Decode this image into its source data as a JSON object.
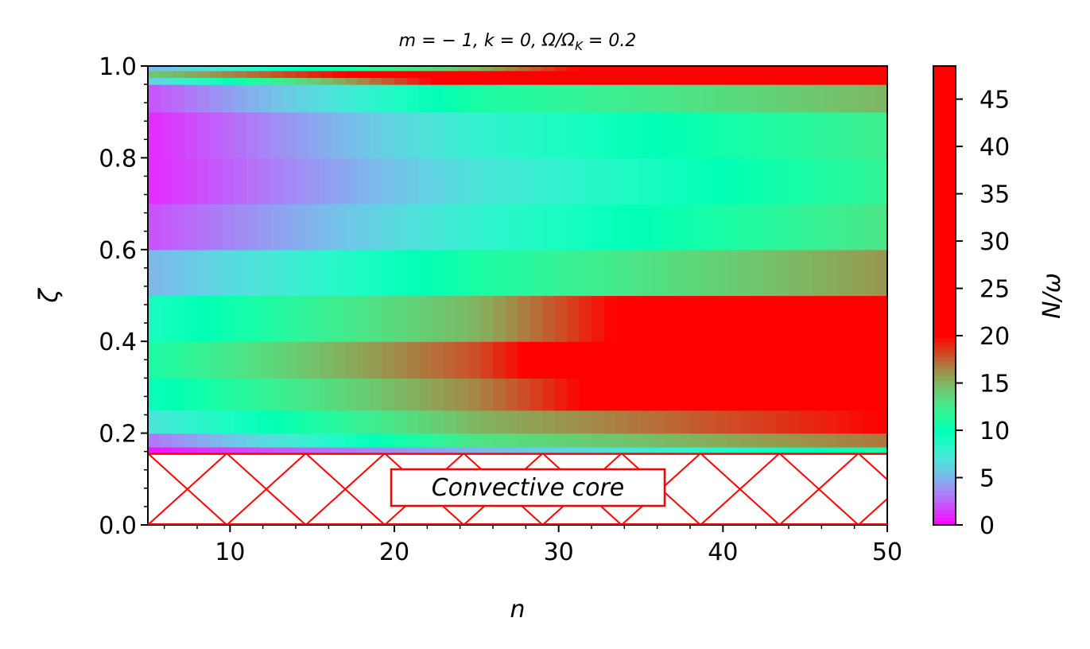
{
  "chart_data": {
    "type": "heatmap",
    "title_parts": [
      "m = − 1, k = 0, Ω/Ω",
      "K",
      " = 0.2"
    ],
    "xlabel": "n",
    "ylabel": "ζ",
    "xlim": [
      5,
      50
    ],
    "ylim": [
      0.0,
      1.0
    ],
    "x_ticks": [
      10,
      20,
      30,
      40,
      50
    ],
    "x_tick_labels": [
      "10",
      "20",
      "30",
      "40",
      "50"
    ],
    "y_ticks": [
      0.0,
      0.2,
      0.4,
      0.6,
      0.8,
      1.0
    ],
    "y_tick_labels": [
      "0.0",
      "0.2",
      "0.4",
      "0.6",
      "0.8",
      "1.0"
    ],
    "colorbar": {
      "label": "N/ω",
      "range": [
        0,
        48.5
      ],
      "ticks": [
        0,
        5,
        10,
        15,
        20,
        25,
        30,
        35,
        40,
        45
      ],
      "tick_labels": [
        "0",
        "5",
        "10",
        "15",
        "20",
        "25",
        "30",
        "35",
        "40",
        "45"
      ],
      "colormap": "rainbow",
      "saturation_value": 20
    },
    "convective_core": {
      "zeta_boundary": 0.155,
      "label": "Convective core",
      "color": "#ff0000"
    },
    "field_description": {
      "n_bins_zeta_edges": [
        0.155,
        0.17,
        0.2,
        0.25,
        0.32,
        0.4,
        0.5,
        0.6,
        0.7,
        0.8,
        0.9,
        0.96,
        0.975,
        0.99,
        1.0
      ],
      "values_at_n5": [
        0.5,
        3,
        7,
        9.5,
        11,
        9,
        5,
        2,
        1,
        1,
        2,
        6,
        14,
        5
      ],
      "values_at_n25": [
        5,
        13,
        15,
        16.5,
        18,
        15,
        11,
        8,
        7,
        8,
        11,
        22,
        24,
        15
      ],
      "values_at_n50": [
        11,
        17,
        20,
        30,
        35,
        30,
        16,
        13,
        12,
        12.5,
        15,
        30,
        40,
        35
      ]
    }
  }
}
